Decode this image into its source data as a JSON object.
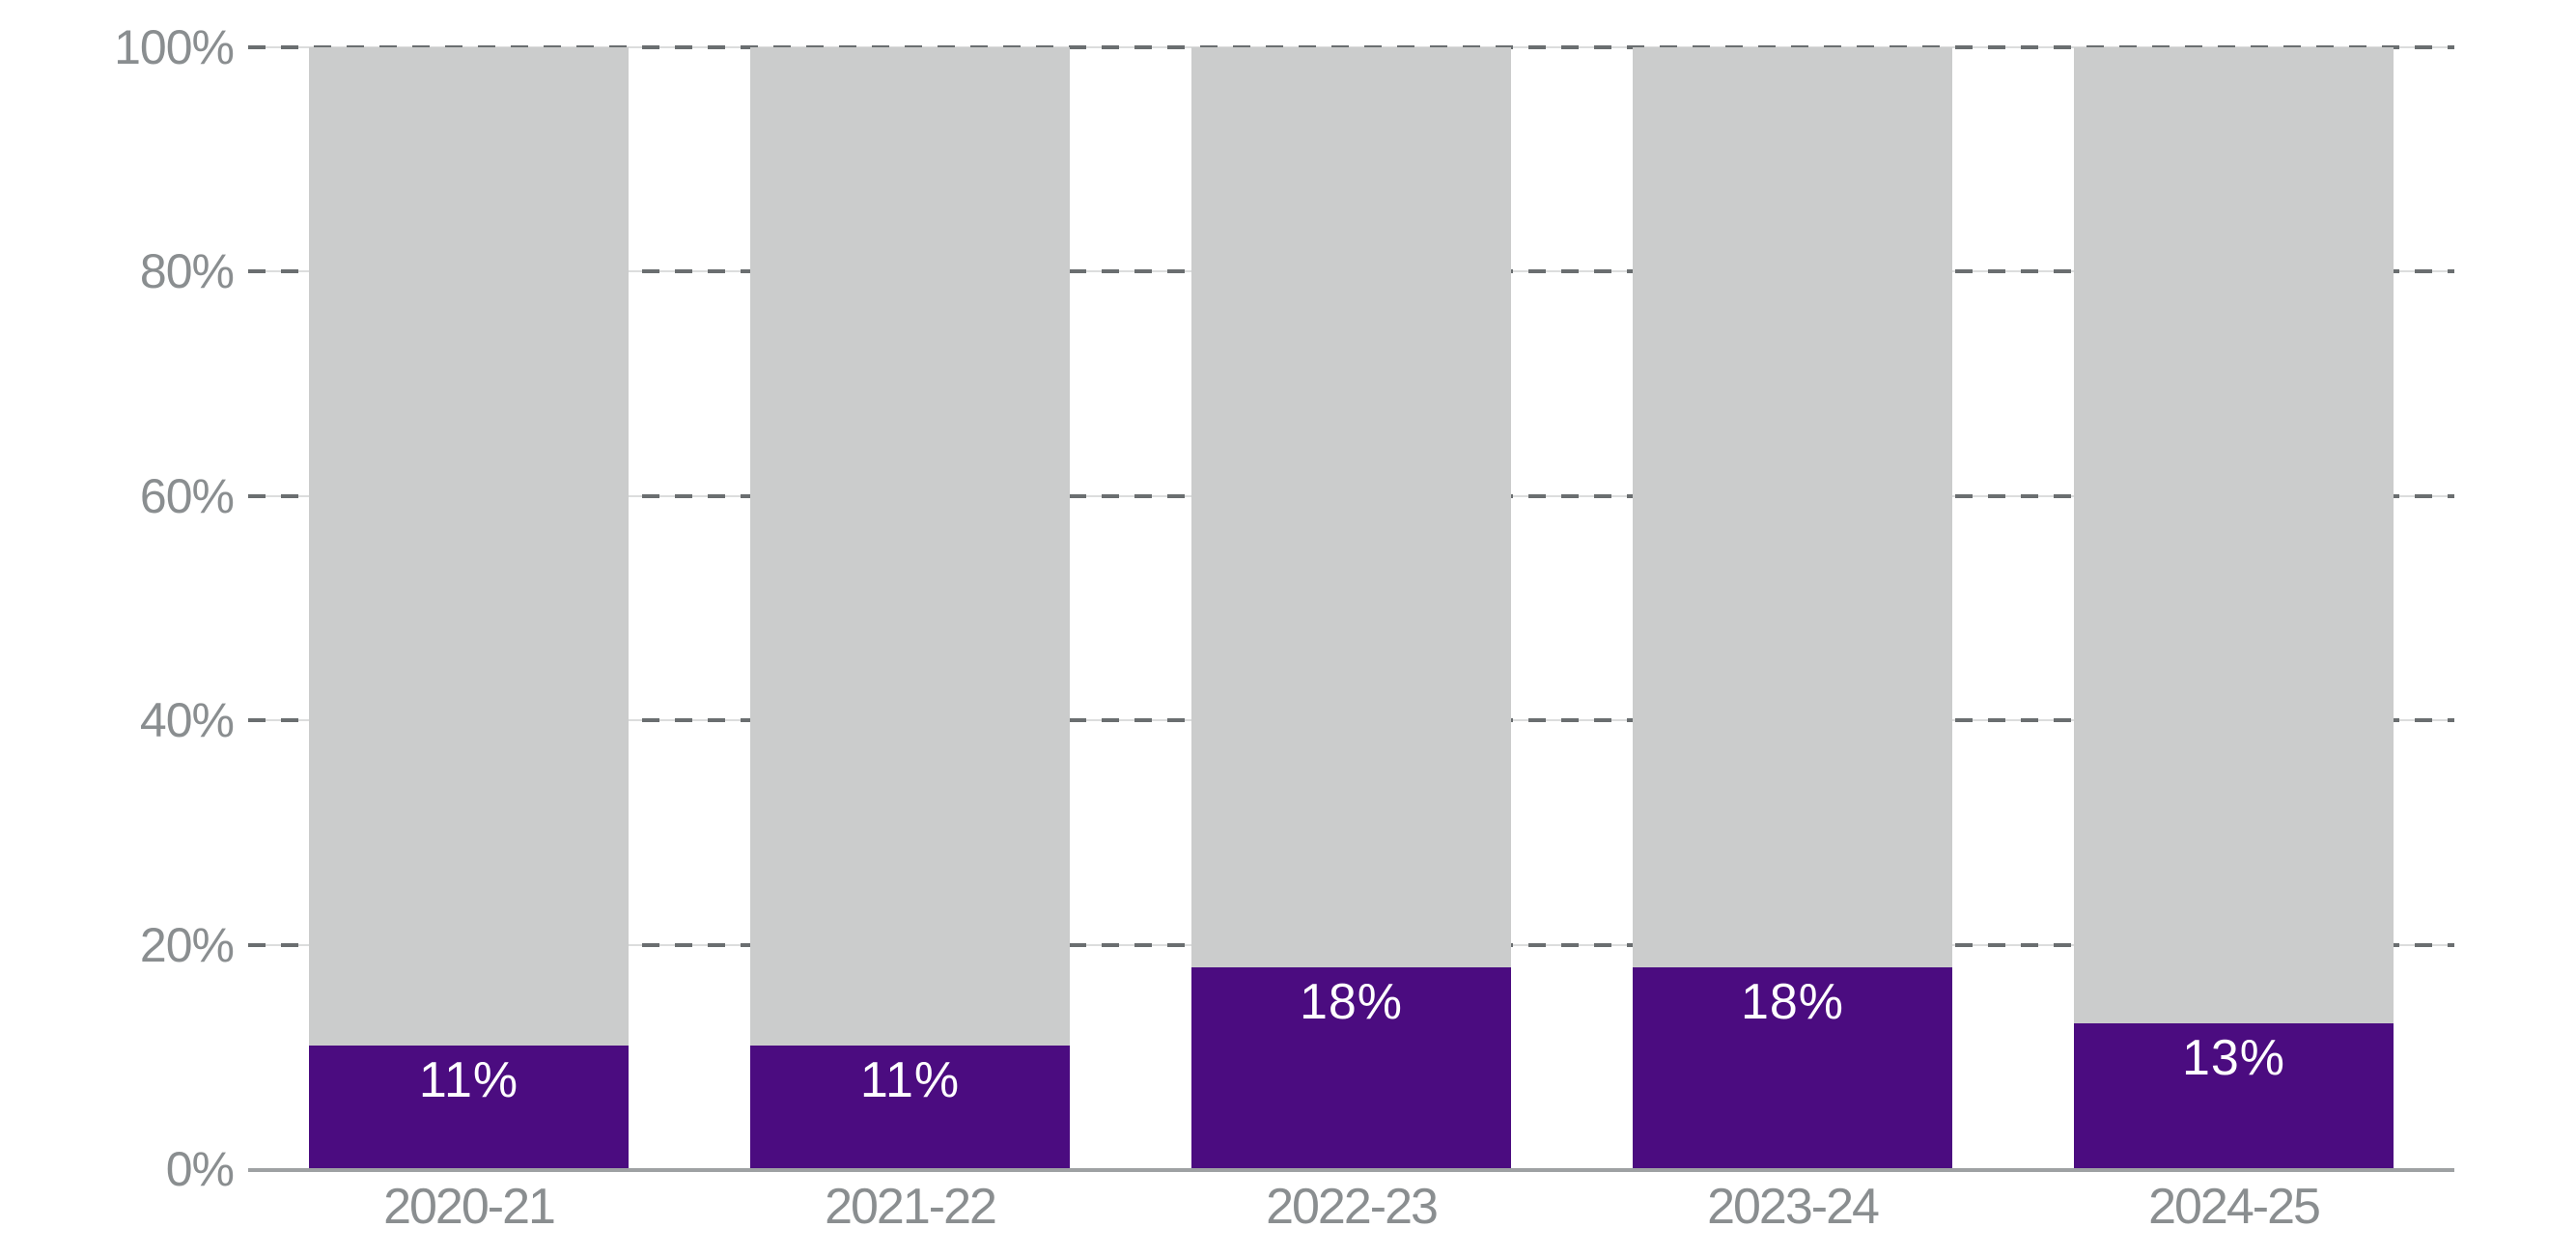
{
  "chart_data": {
    "type": "bar",
    "variant": "stacked-100-percent-column",
    "categories": [
      "2020-21",
      "2021-22",
      "2022-23",
      "2023-24",
      "2024-25"
    ],
    "series": [
      {
        "name": "highlighted-share",
        "color": "#4b0c80",
        "values": [
          11,
          11,
          18,
          18,
          13
        ]
      },
      {
        "name": "remainder",
        "color": "#cbcccc",
        "values": [
          89,
          89,
          82,
          82,
          87
        ]
      }
    ],
    "bar_labels": [
      "11%",
      "11%",
      "18%",
      "18%",
      "13%"
    ],
    "y_axis": {
      "min": 0,
      "max": 100,
      "ticks": [
        {
          "label": "0%",
          "value": 0
        },
        {
          "label": "20%",
          "value": 20
        },
        {
          "label": "40%",
          "value": 40
        },
        {
          "label": "60%",
          "value": 60
        },
        {
          "label": "80%",
          "value": 80
        },
        {
          "label": "100%",
          "value": 100
        }
      ]
    },
    "grid": {
      "style": "dashed",
      "levels": [
        20,
        40,
        60,
        80,
        100
      ],
      "dash_color": "#6a6e70",
      "underlay_color": "#dcdddd"
    },
    "axis_line_color": "#9ea1a3",
    "label_text_color": "#8a8e90",
    "bar_value_text_color": "#ffffff",
    "legend": "none",
    "title": ""
  }
}
